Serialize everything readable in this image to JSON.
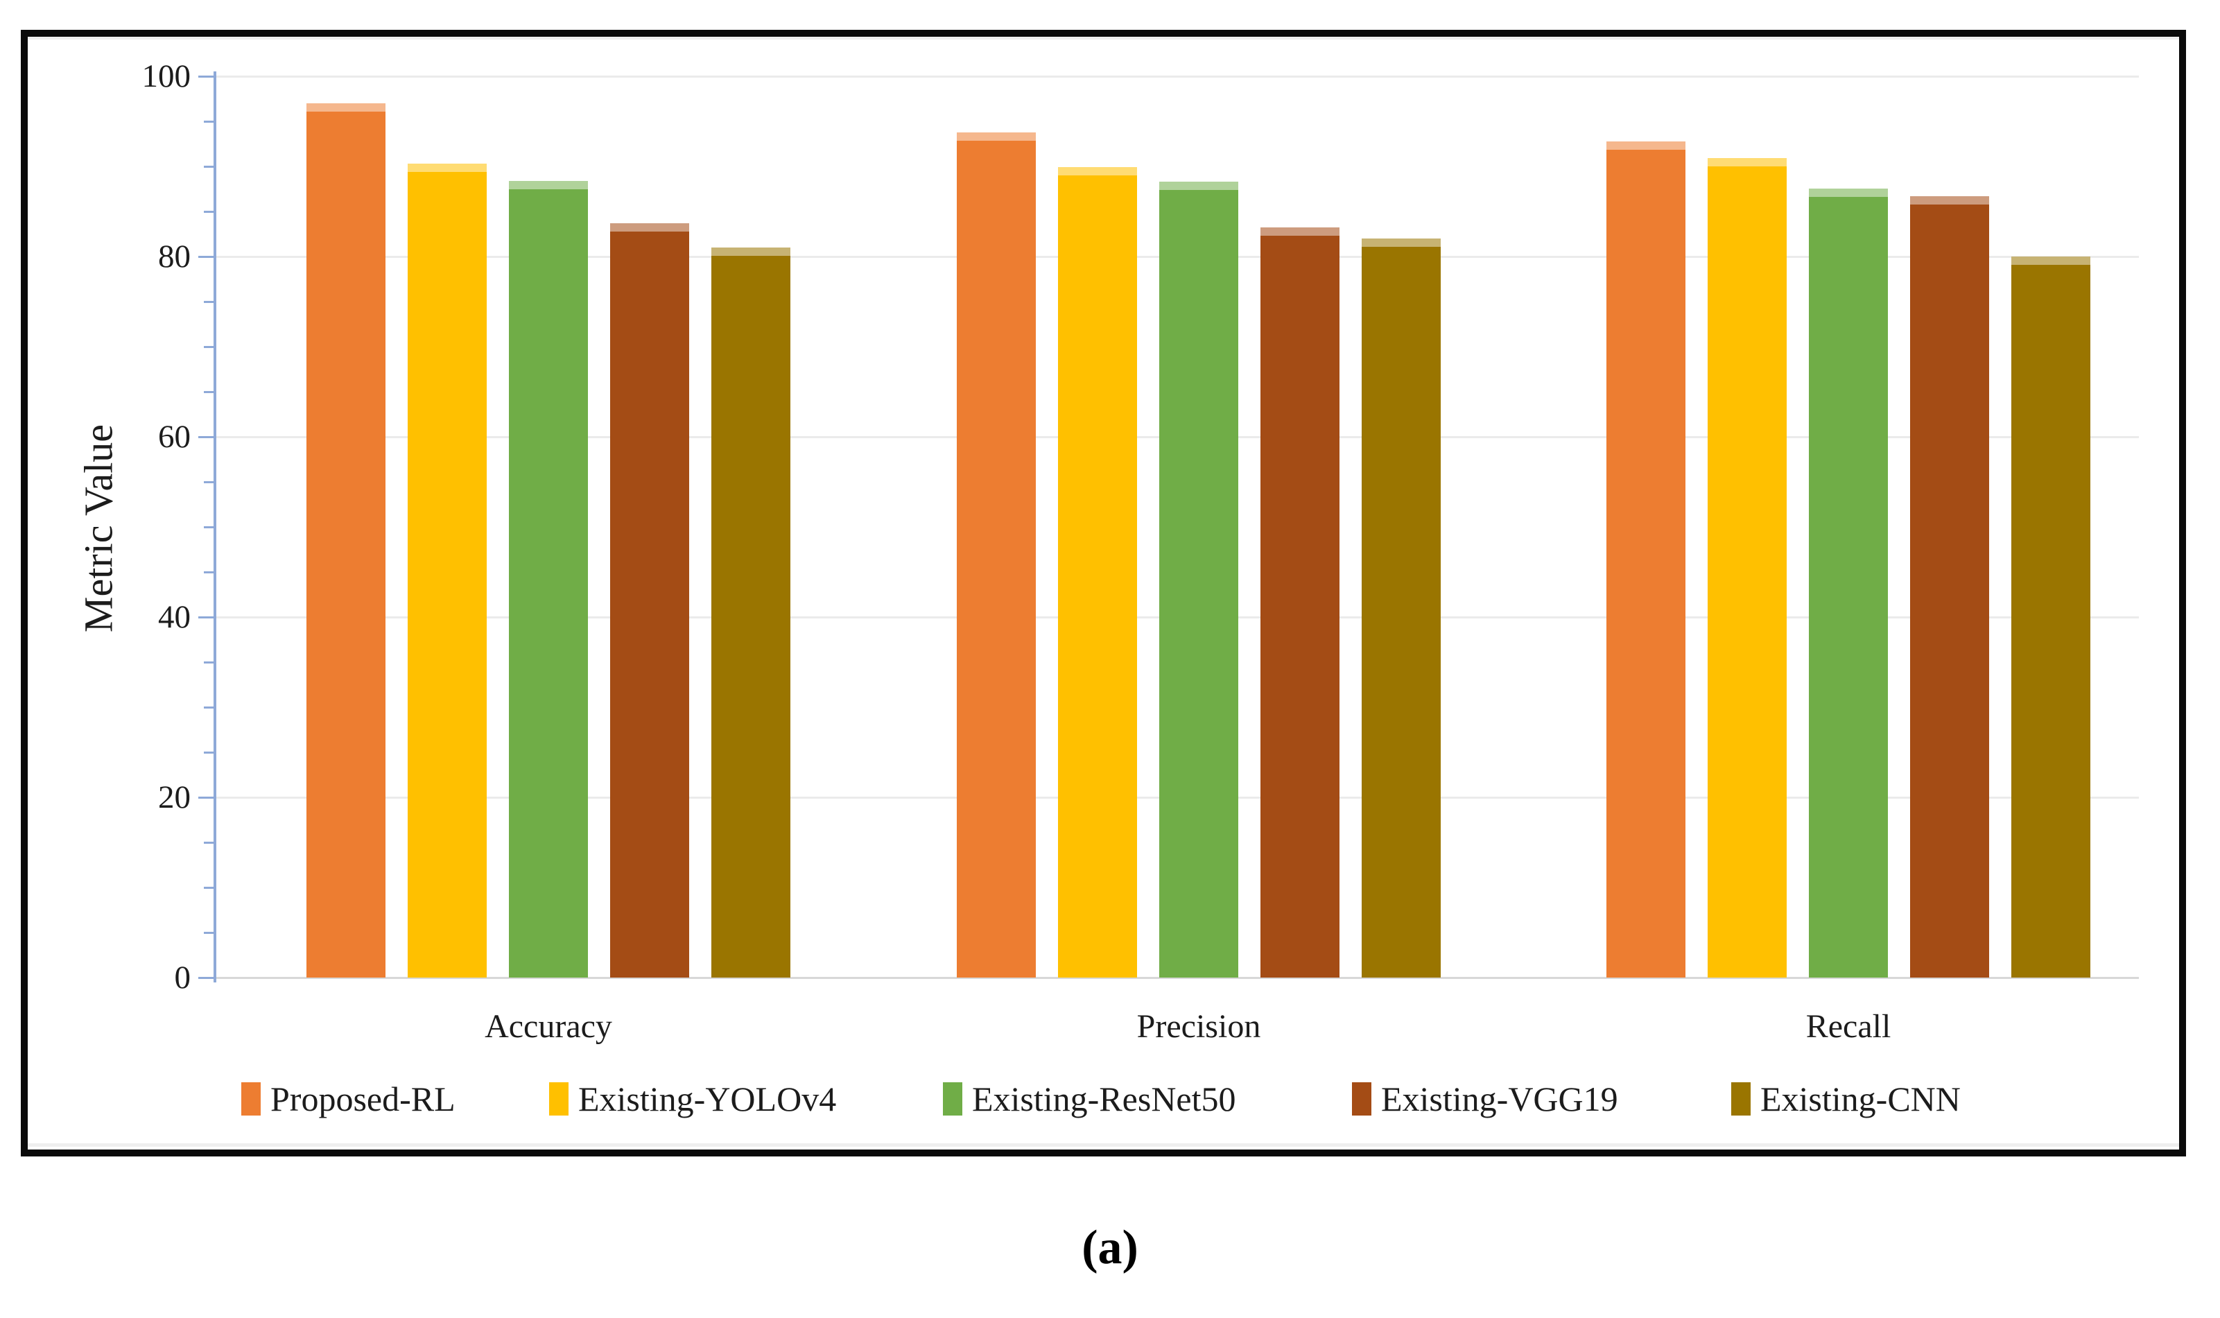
{
  "figure": {
    "caption": "(a)"
  },
  "chart_data": {
    "type": "bar",
    "title": "",
    "xlabel": "",
    "ylabel": "Metric Value",
    "ylim": [
      0,
      100
    ],
    "yticks": [
      0,
      20,
      40,
      60,
      80,
      100
    ],
    "minor_tick_step": 5,
    "grid": true,
    "legend_position": "bottom",
    "categories": [
      "Accuracy",
      "Precision",
      "Recall"
    ],
    "series": [
      {
        "name": "Proposed-RL",
        "color": "#ED7D31",
        "values": [
          97.0,
          93.8,
          92.8
        ]
      },
      {
        "name": "Existing-YOLOv4",
        "color": "#FFC000",
        "values": [
          90.3,
          89.9,
          90.9
        ]
      },
      {
        "name": "Existing-ResNet50",
        "color": "#70AD47",
        "values": [
          88.4,
          88.3,
          87.5
        ]
      },
      {
        "name": "Existing-VGG19",
        "color": "#A44C15",
        "values": [
          83.7,
          83.2,
          86.7
        ]
      },
      {
        "name": "Existing-CNN",
        "color": "#9A7500",
        "values": [
          81.0,
          82.0,
          80.0
        ]
      }
    ],
    "axis_color": "#8EA9D8",
    "gridline_color": "#EBEBEB"
  }
}
